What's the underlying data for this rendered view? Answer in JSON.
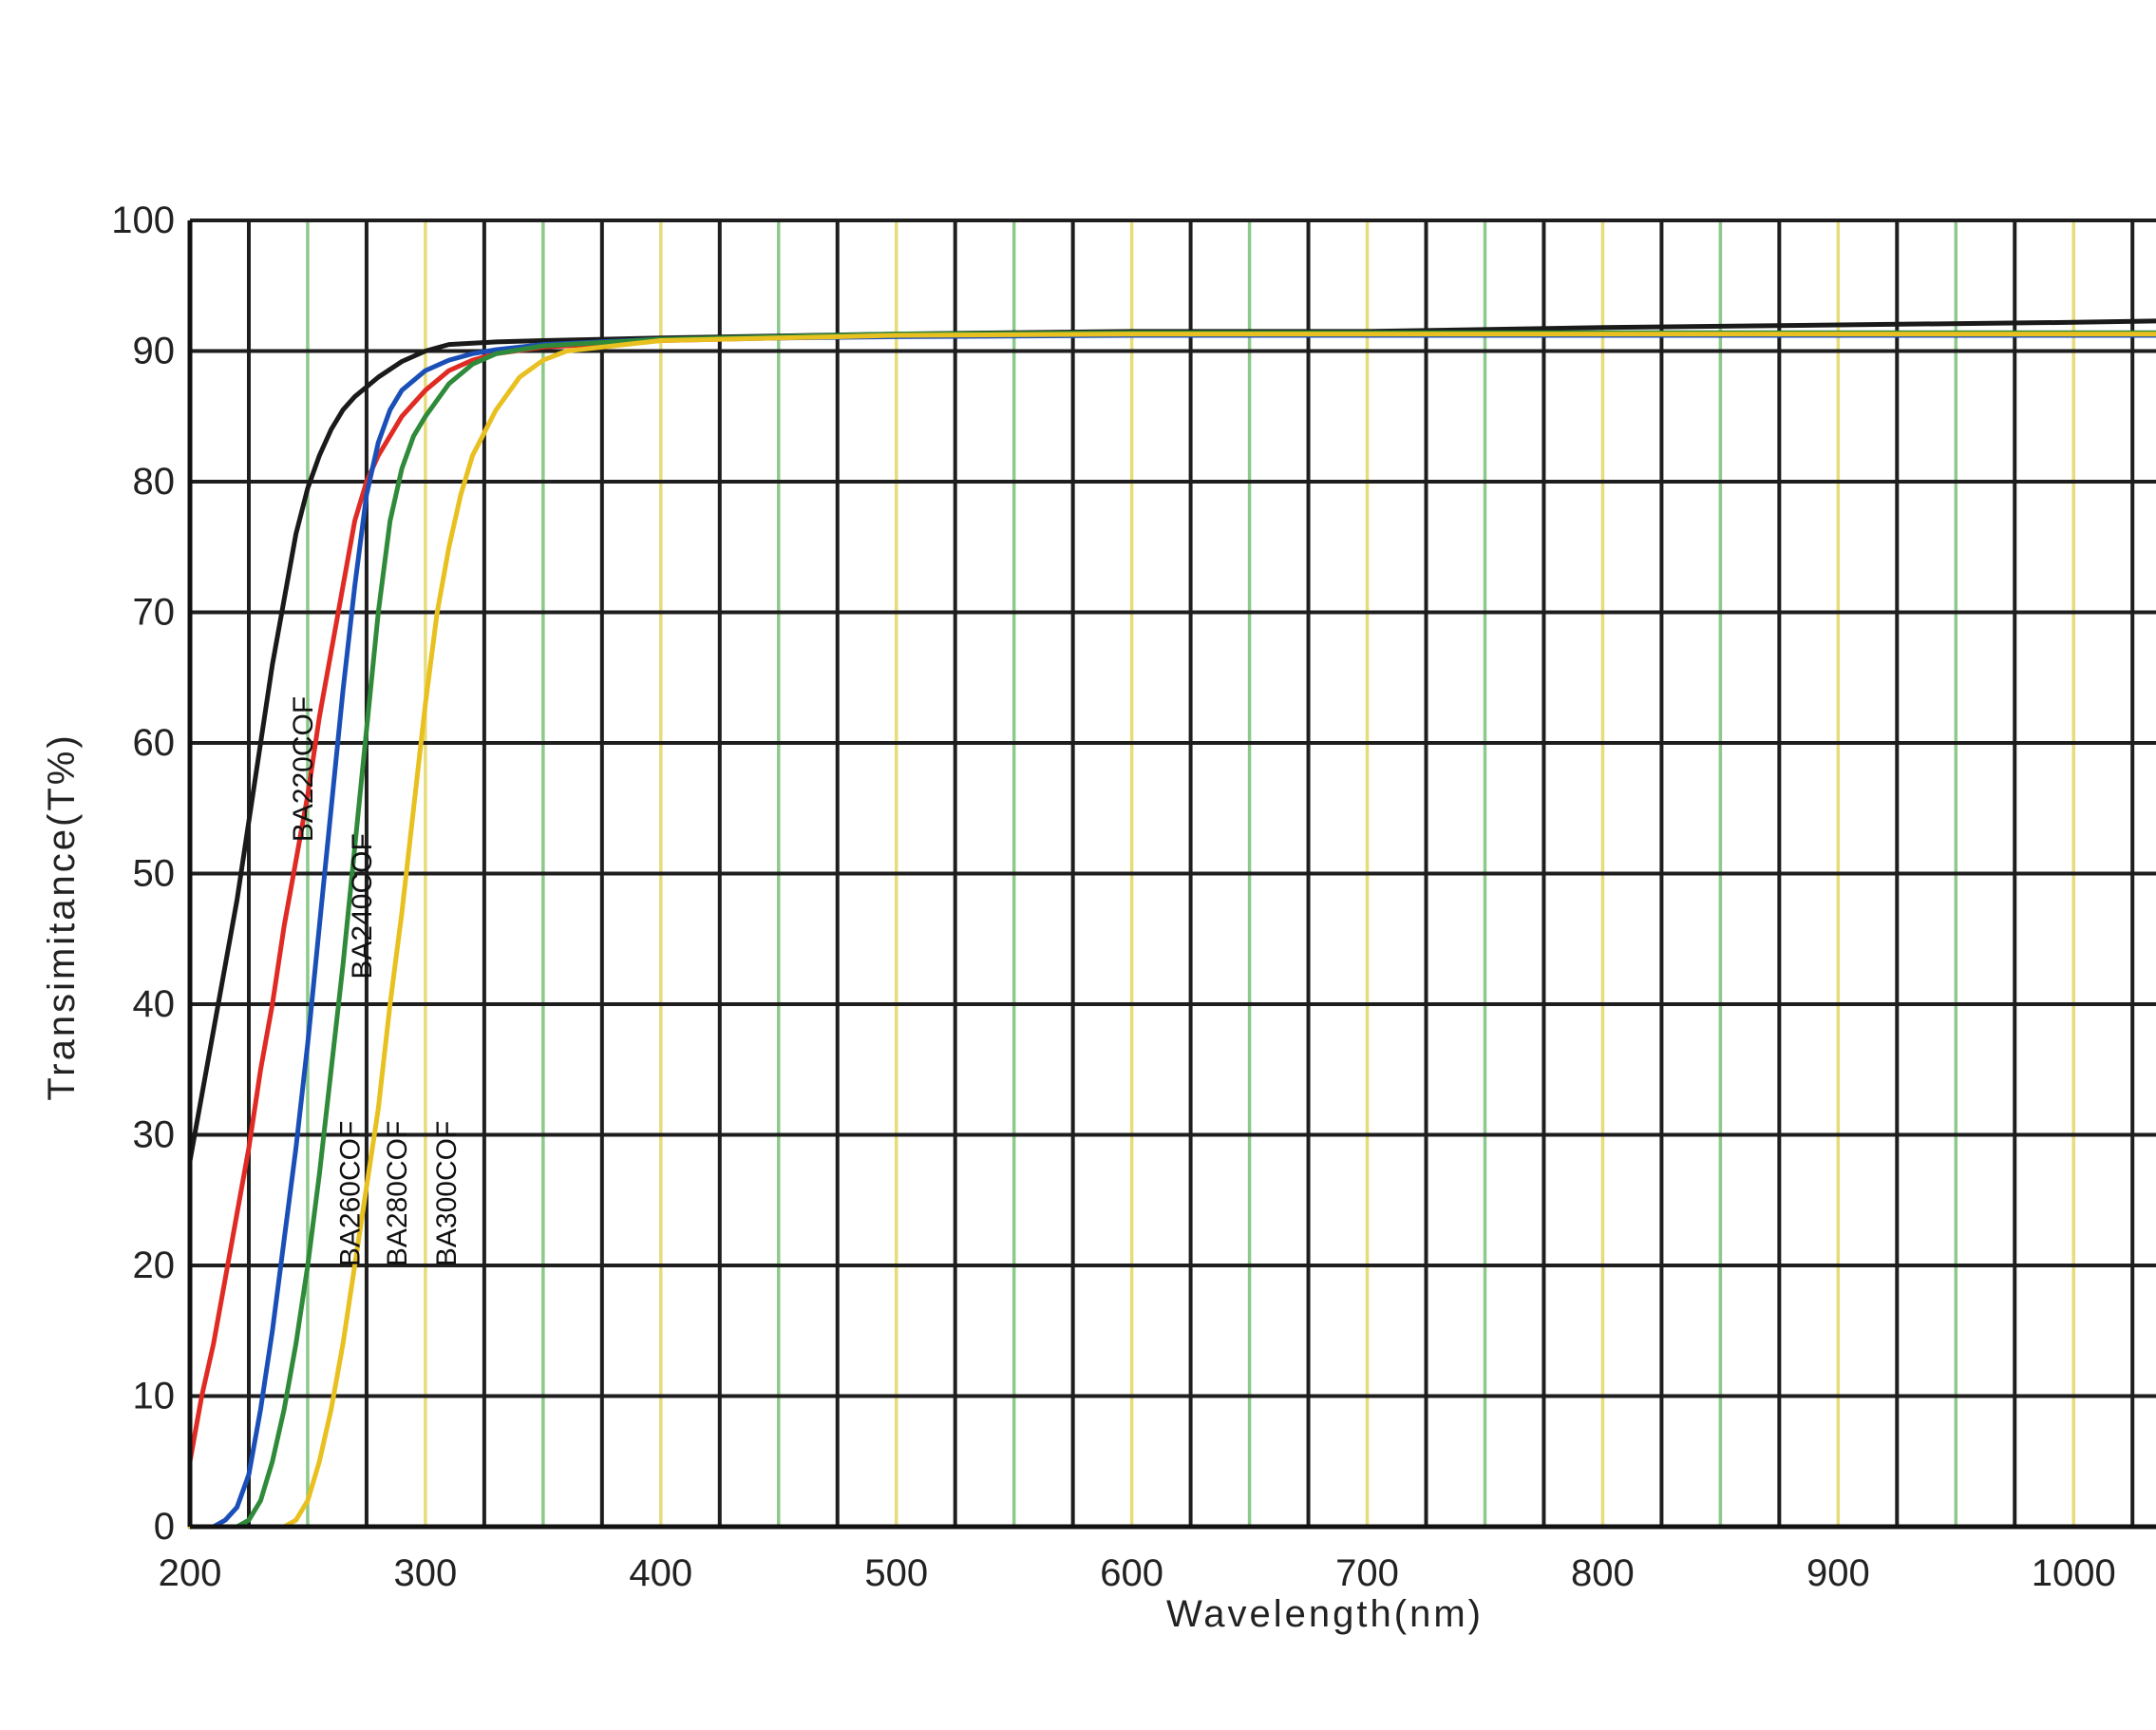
{
  "chart_data": {
    "type": "line",
    "title": "",
    "xlabel": "Wavelength(nm)",
    "ylabel": "Transimitance(T%)",
    "xlim": [
      200,
      1035
    ],
    "ylim": [
      0,
      100
    ],
    "x_ticks": [
      200,
      300,
      400,
      500,
      600,
      700,
      800,
      900,
      1000
    ],
    "y_ticks": [
      0,
      10,
      20,
      30,
      40,
      50,
      60,
      70,
      80,
      90,
      100
    ],
    "grid": true,
    "legend": "inline labels along curves",
    "series": [
      {
        "name": "BA220COF",
        "color": "#1a1a1a",
        "x": [
          200,
          205,
          210,
          215,
          220,
          225,
          230,
          235,
          240,
          245,
          250,
          255,
          260,
          265,
          270,
          280,
          290,
          300,
          310,
          320,
          330,
          350,
          400,
          500,
          600,
          700,
          800,
          900,
          1000,
          1035
        ],
        "y": [
          28,
          33,
          38,
          43,
          48,
          54,
          60,
          66,
          71,
          76,
          79.5,
          82,
          84,
          85.5,
          86.5,
          88,
          89.2,
          90,
          90.5,
          90.6,
          90.7,
          90.8,
          91,
          91.3,
          91.5,
          91.5,
          91.8,
          92,
          92.2,
          92.3
        ]
      },
      {
        "name": "BA240COF",
        "color": "#e02a24",
        "x": [
          200,
          205,
          210,
          215,
          220,
          225,
          230,
          235,
          240,
          245,
          250,
          255,
          260,
          265,
          270,
          275,
          280,
          290,
          300,
          310,
          320,
          330,
          350,
          400,
          500,
          600,
          700,
          800,
          900,
          1000,
          1035
        ],
        "y": [
          5,
          10,
          14,
          19,
          24,
          29,
          35,
          40,
          46,
          51,
          56,
          62,
          67,
          72,
          77,
          80,
          82,
          85,
          87,
          88.5,
          89.3,
          89.8,
          90.3,
          90.8,
          91.2,
          91.3,
          91.3,
          91.3,
          91.3,
          91.3,
          91.3
        ]
      },
      {
        "name": "BA260COF",
        "color": "#1b4fb8",
        "x": [
          200,
          210,
          215,
          220,
          225,
          230,
          235,
          240,
          245,
          250,
          255,
          260,
          265,
          270,
          275,
          280,
          285,
          290,
          300,
          310,
          320,
          330,
          350,
          400,
          500,
          600,
          700,
          800,
          900,
          1000,
          1035
        ],
        "y": [
          0,
          0,
          0.5,
          1.5,
          4,
          9,
          15,
          22,
          29,
          37,
          46,
          55,
          64,
          72,
          79,
          83,
          85.5,
          87,
          88.5,
          89.3,
          89.8,
          90.1,
          90.5,
          90.9,
          91.1,
          91.2,
          91.2,
          91.2,
          91.2,
          91.2,
          91.2
        ]
      },
      {
        "name": "BA280COF",
        "color": "#2f8a3a",
        "x": [
          200,
          220,
          225,
          230,
          235,
          240,
          245,
          250,
          255,
          260,
          265,
          270,
          275,
          280,
          285,
          290,
          295,
          300,
          310,
          320,
          330,
          350,
          400,
          500,
          600,
          700,
          800,
          900,
          1000,
          1035
        ],
        "y": [
          0,
          0,
          0.5,
          2,
          5,
          9,
          14,
          20,
          27,
          35,
          43,
          52,
          61,
          70,
          77,
          81,
          83.5,
          85,
          87.5,
          89,
          89.8,
          90.4,
          90.9,
          91.3,
          91.4,
          91.4,
          91.4,
          91.4,
          91.4,
          91.4
        ]
      },
      {
        "name": "BA300COF",
        "color": "#e8c020",
        "x": [
          200,
          240,
          245,
          250,
          255,
          260,
          265,
          270,
          275,
          280,
          285,
          290,
          295,
          300,
          305,
          310,
          315,
          320,
          330,
          340,
          350,
          360,
          400,
          500,
          600,
          700,
          800,
          900,
          1000,
          1035
        ],
        "y": [
          0,
          0,
          0.5,
          2,
          5,
          9,
          14,
          20,
          26,
          32,
          40,
          47,
          55,
          63,
          70,
          75,
          79,
          82,
          85.5,
          88,
          89.3,
          90,
          90.8,
          91.2,
          91.3,
          91.3,
          91.3,
          91.3,
          91.3,
          91.3
        ]
      }
    ]
  }
}
